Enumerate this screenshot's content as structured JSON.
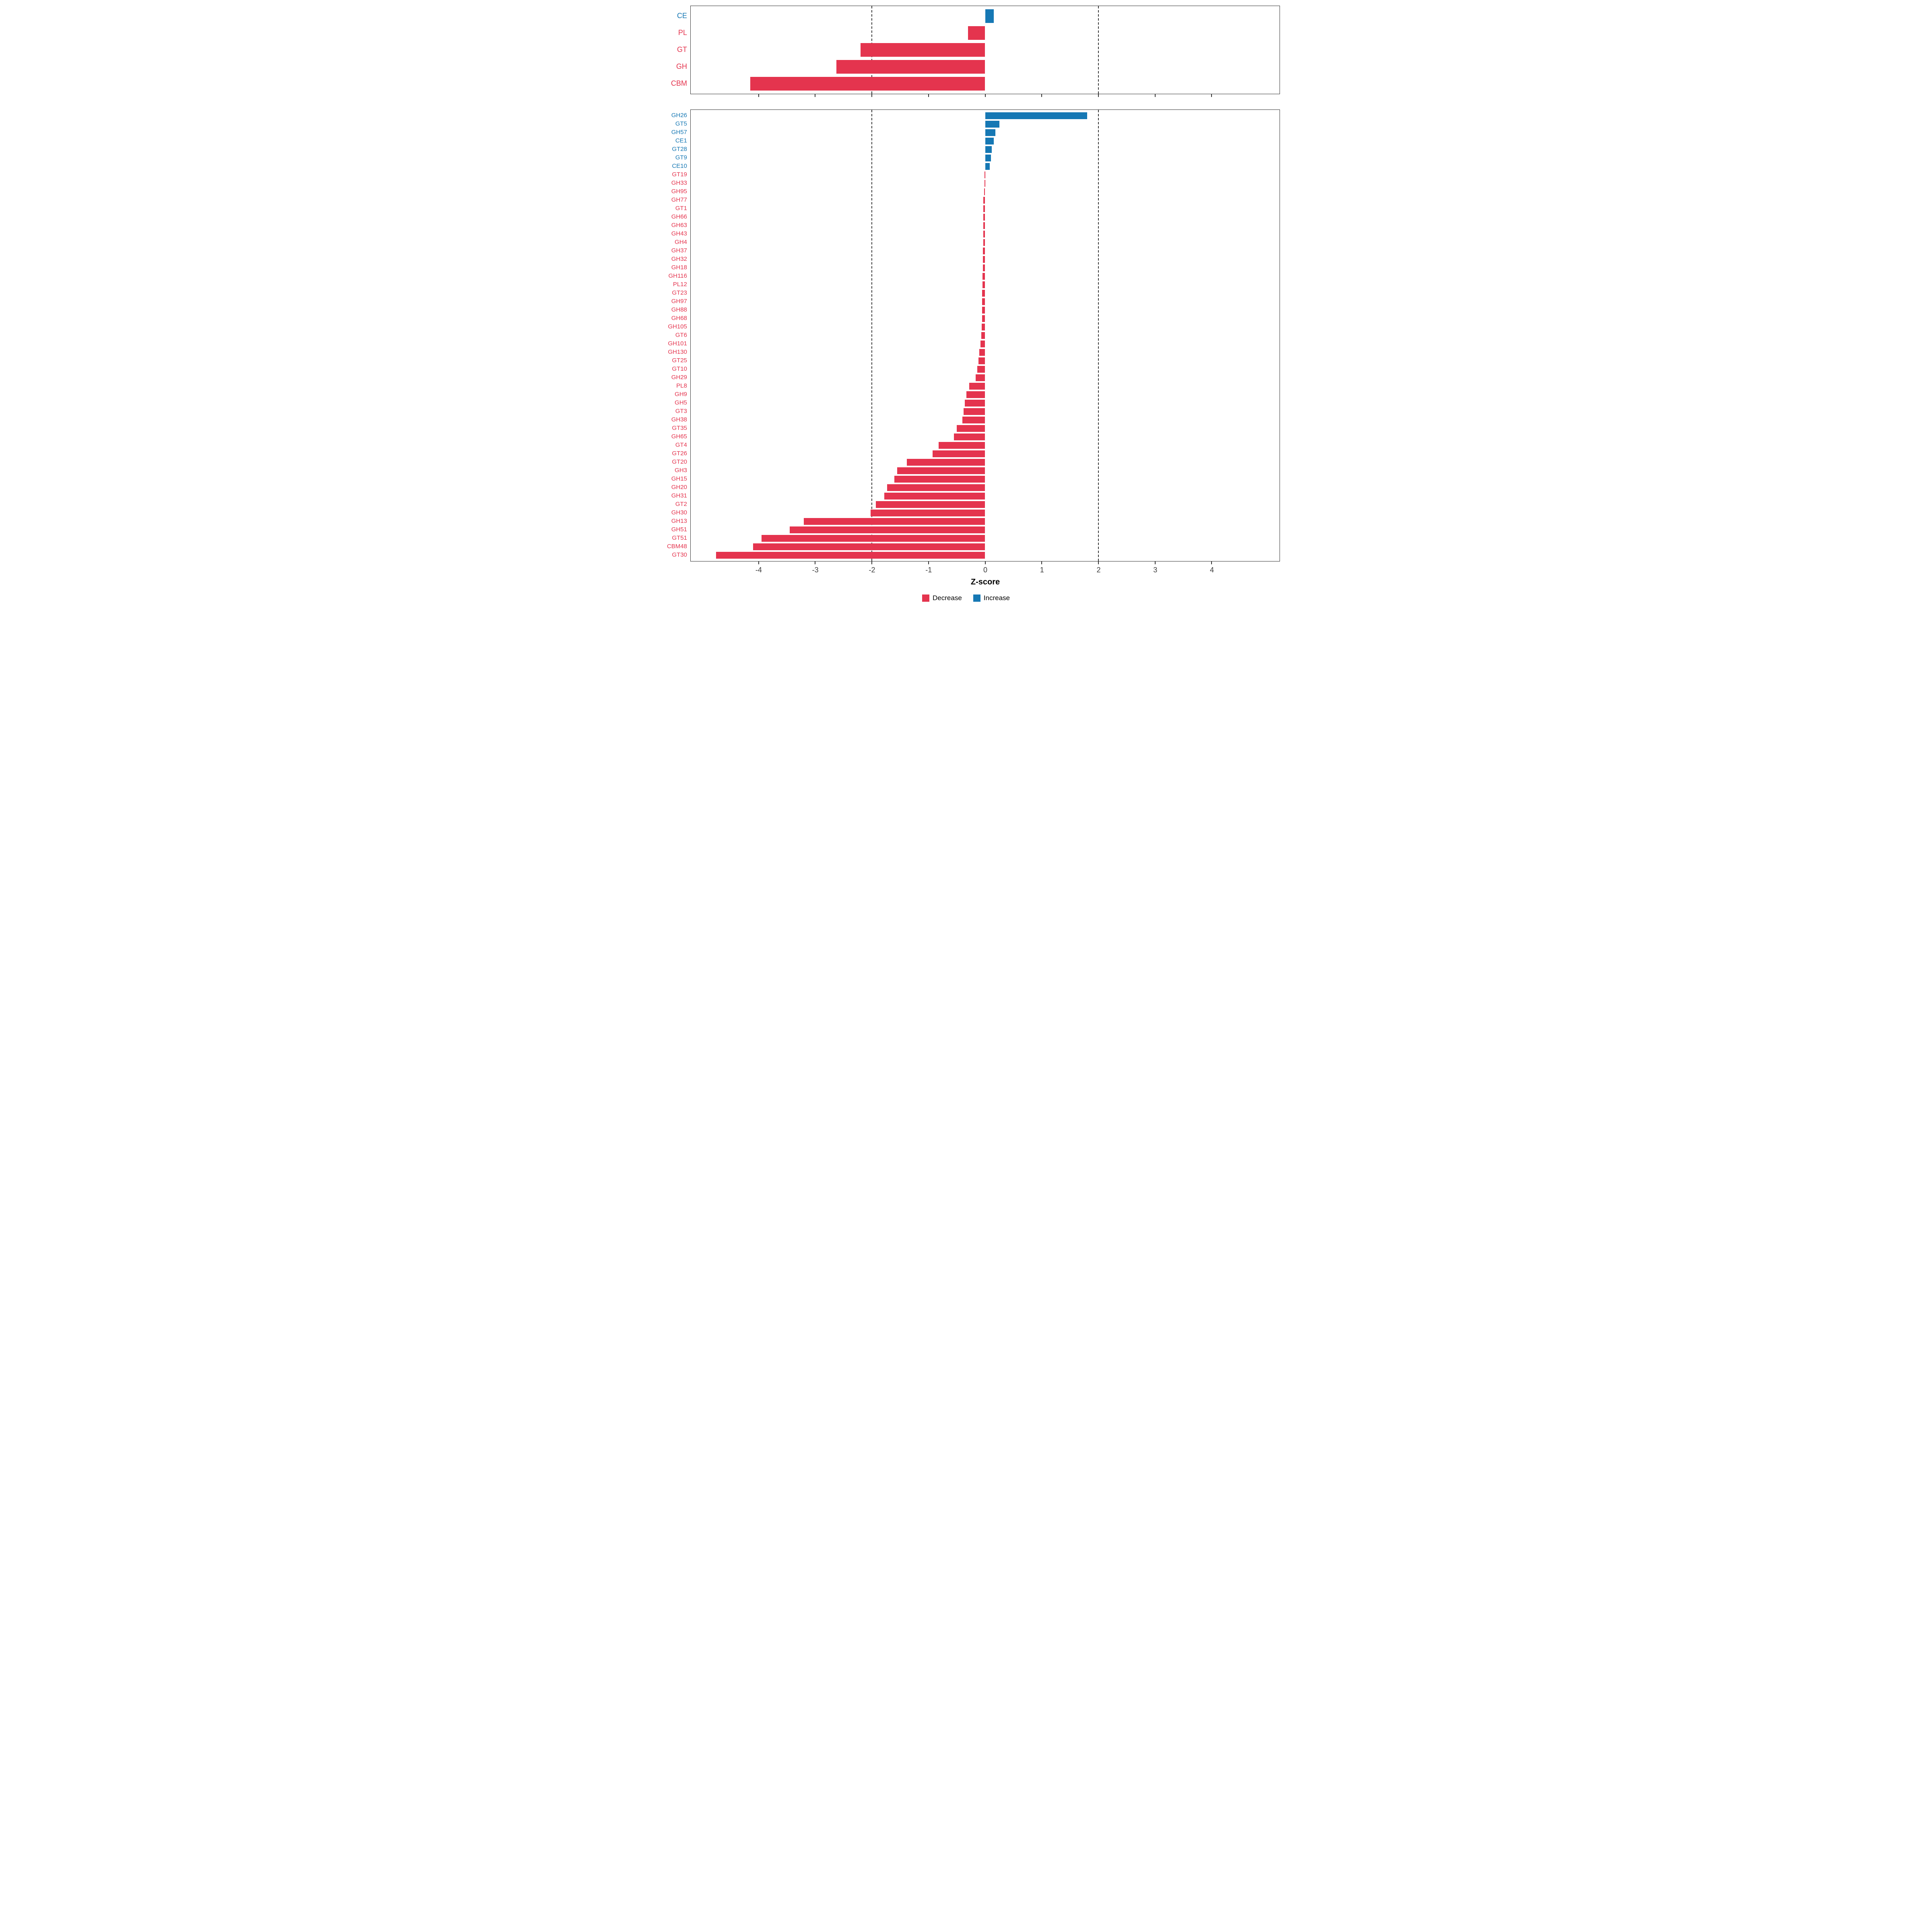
{
  "colors": {
    "decrease": "#E4344E",
    "increase": "#1678B4",
    "panel_border": "#333333",
    "dashed_line": "#3a3a3a",
    "tick_text": "#3c3c3c"
  },
  "chart_data": {
    "type": "bar",
    "orientation": "horizontal",
    "title": "",
    "xlabel": "Z-score",
    "axis": {
      "xmin": -5.2,
      "xmax": 5.2,
      "ticks": [
        -4,
        -3,
        -2,
        -1,
        0,
        1,
        2,
        3,
        4
      ],
      "dashed_lines": [
        -2,
        2
      ],
      "grid": "off"
    },
    "legend": {
      "position": "bottom",
      "items": [
        {
          "label": "Decrease",
          "color_key": "decrease"
        },
        {
          "label": "Increase",
          "color_key": "increase"
        }
      ]
    },
    "panels": [
      {
        "name": "cazyme-class",
        "categories": [
          "CE",
          "PL",
          "GT",
          "GH",
          "CBM"
        ],
        "values": [
          0.15,
          -0.3,
          -2.2,
          -2.63,
          -4.15
        ]
      },
      {
        "name": "cazyme-family",
        "categories": [
          "GH26",
          "GT5",
          "GH57",
          "CE1",
          "GT28",
          "GT9",
          "CE10",
          "GT19",
          "GH33",
          "GH95",
          "GH77",
          "GT1",
          "GH66",
          "GH63",
          "GH43",
          "GH4",
          "GH37",
          "GH32",
          "GH18",
          "GH116",
          "PL12",
          "GT23",
          "GH97",
          "GH88",
          "GH68",
          "GH105",
          "GT6",
          "GH101",
          "GH130",
          "GT25",
          "GT10",
          "GH29",
          "PL8",
          "GH9",
          "GH5",
          "GT3",
          "GH38",
          "GT35",
          "GH65",
          "GT4",
          "GT26",
          "GT20",
          "GH3",
          "GH15",
          "GH20",
          "GH31",
          "GT2",
          "GH30",
          "GH13",
          "GH51",
          "GT51",
          "CBM48",
          "GT30"
        ],
        "values": [
          1.8,
          0.25,
          0.18,
          0.15,
          0.12,
          0.1,
          0.08,
          -0.01,
          -0.01,
          -0.02,
          -0.03,
          -0.03,
          -0.03,
          -0.03,
          -0.035,
          -0.035,
          -0.04,
          -0.04,
          -0.04,
          -0.045,
          -0.045,
          -0.05,
          -0.05,
          -0.05,
          -0.055,
          -0.06,
          -0.07,
          -0.08,
          -0.1,
          -0.12,
          -0.14,
          -0.17,
          -0.28,
          -0.33,
          -0.36,
          -0.38,
          -0.4,
          -0.5,
          -0.55,
          -0.82,
          -0.93,
          -1.38,
          -1.55,
          -1.6,
          -1.73,
          -1.78,
          -1.93,
          -2.02,
          -3.2,
          -3.45,
          -3.95,
          -4.1,
          -4.75
        ]
      }
    ]
  }
}
